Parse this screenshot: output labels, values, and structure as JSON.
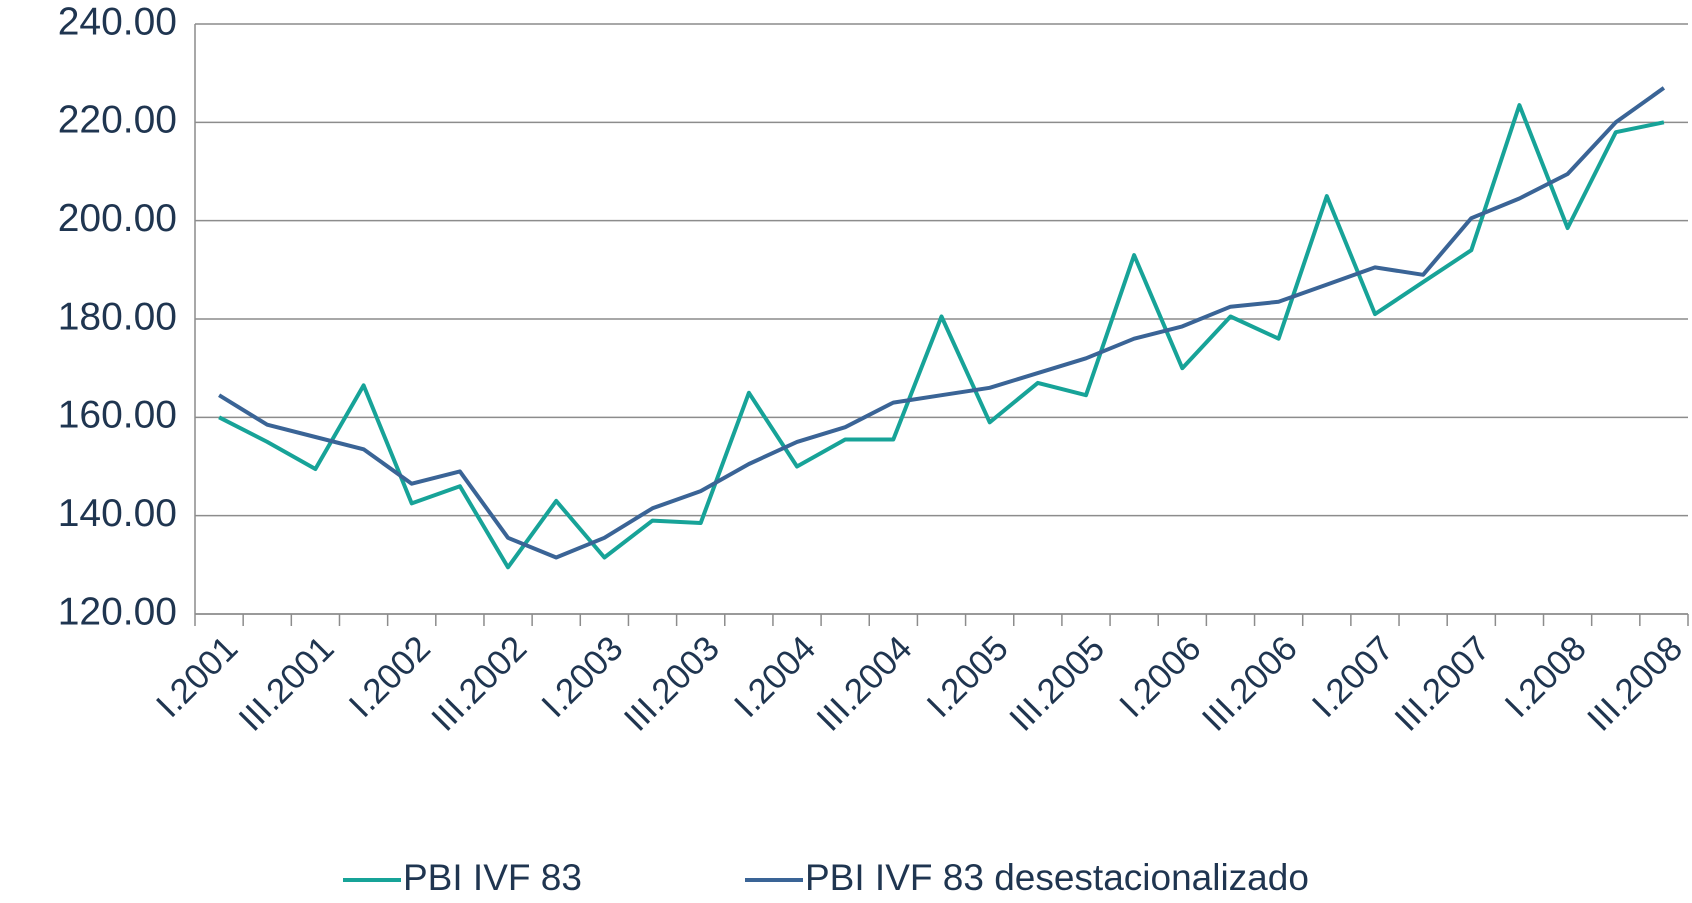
{
  "chart_data": {
    "type": "line",
    "categories": [
      "I.2001",
      null,
      "III.2001",
      null,
      "I.2002",
      null,
      "III.2002",
      null,
      "I.2003",
      null,
      "III.2003",
      null,
      "I.2004",
      null,
      "III.2004",
      null,
      "I.2005",
      null,
      "III.2005",
      null,
      "I.2006",
      null,
      "III.2006",
      null,
      "I.2007",
      null,
      "III.2007",
      null,
      "I.2008",
      null,
      "III.2008"
    ],
    "series": [
      {
        "name": "PBI IVF 83",
        "color": "#17a398",
        "values": [
          160,
          155,
          149.5,
          166.5,
          142.5,
          146,
          129.5,
          143,
          131.5,
          139,
          138.5,
          165,
          150,
          155.5,
          155.5,
          180.5,
          159,
          167,
          164.5,
          193,
          170,
          180.5,
          176,
          205,
          181,
          187.5,
          194,
          223.5,
          198.5,
          218,
          220
        ]
      },
      {
        "name": "PBI IVF 83 desestacionalizado",
        "color": "#3a6496",
        "values": [
          164.5,
          158.5,
          156,
          153.5,
          146.5,
          149,
          135.5,
          131.5,
          135.5,
          141.5,
          145,
          150.5,
          155,
          158,
          163,
          164.5,
          166,
          169,
          172,
          176,
          178.5,
          182.5,
          183.5,
          187,
          190.5,
          189,
          200.5,
          204.5,
          209.5,
          220,
          227
        ]
      }
    ],
    "ylim": [
      120,
      240
    ],
    "yticks": [
      {
        "value": 120,
        "label": "120.00"
      },
      {
        "value": 140,
        "label": "140.00"
      },
      {
        "value": 160,
        "label": "160.00"
      },
      {
        "value": 180,
        "label": "180.00"
      },
      {
        "value": 200,
        "label": "200.00"
      },
      {
        "value": 220,
        "label": "220.00"
      },
      {
        "value": 240,
        "label": "240.00"
      }
    ],
    "grid": true,
    "legend": "bottom"
  }
}
